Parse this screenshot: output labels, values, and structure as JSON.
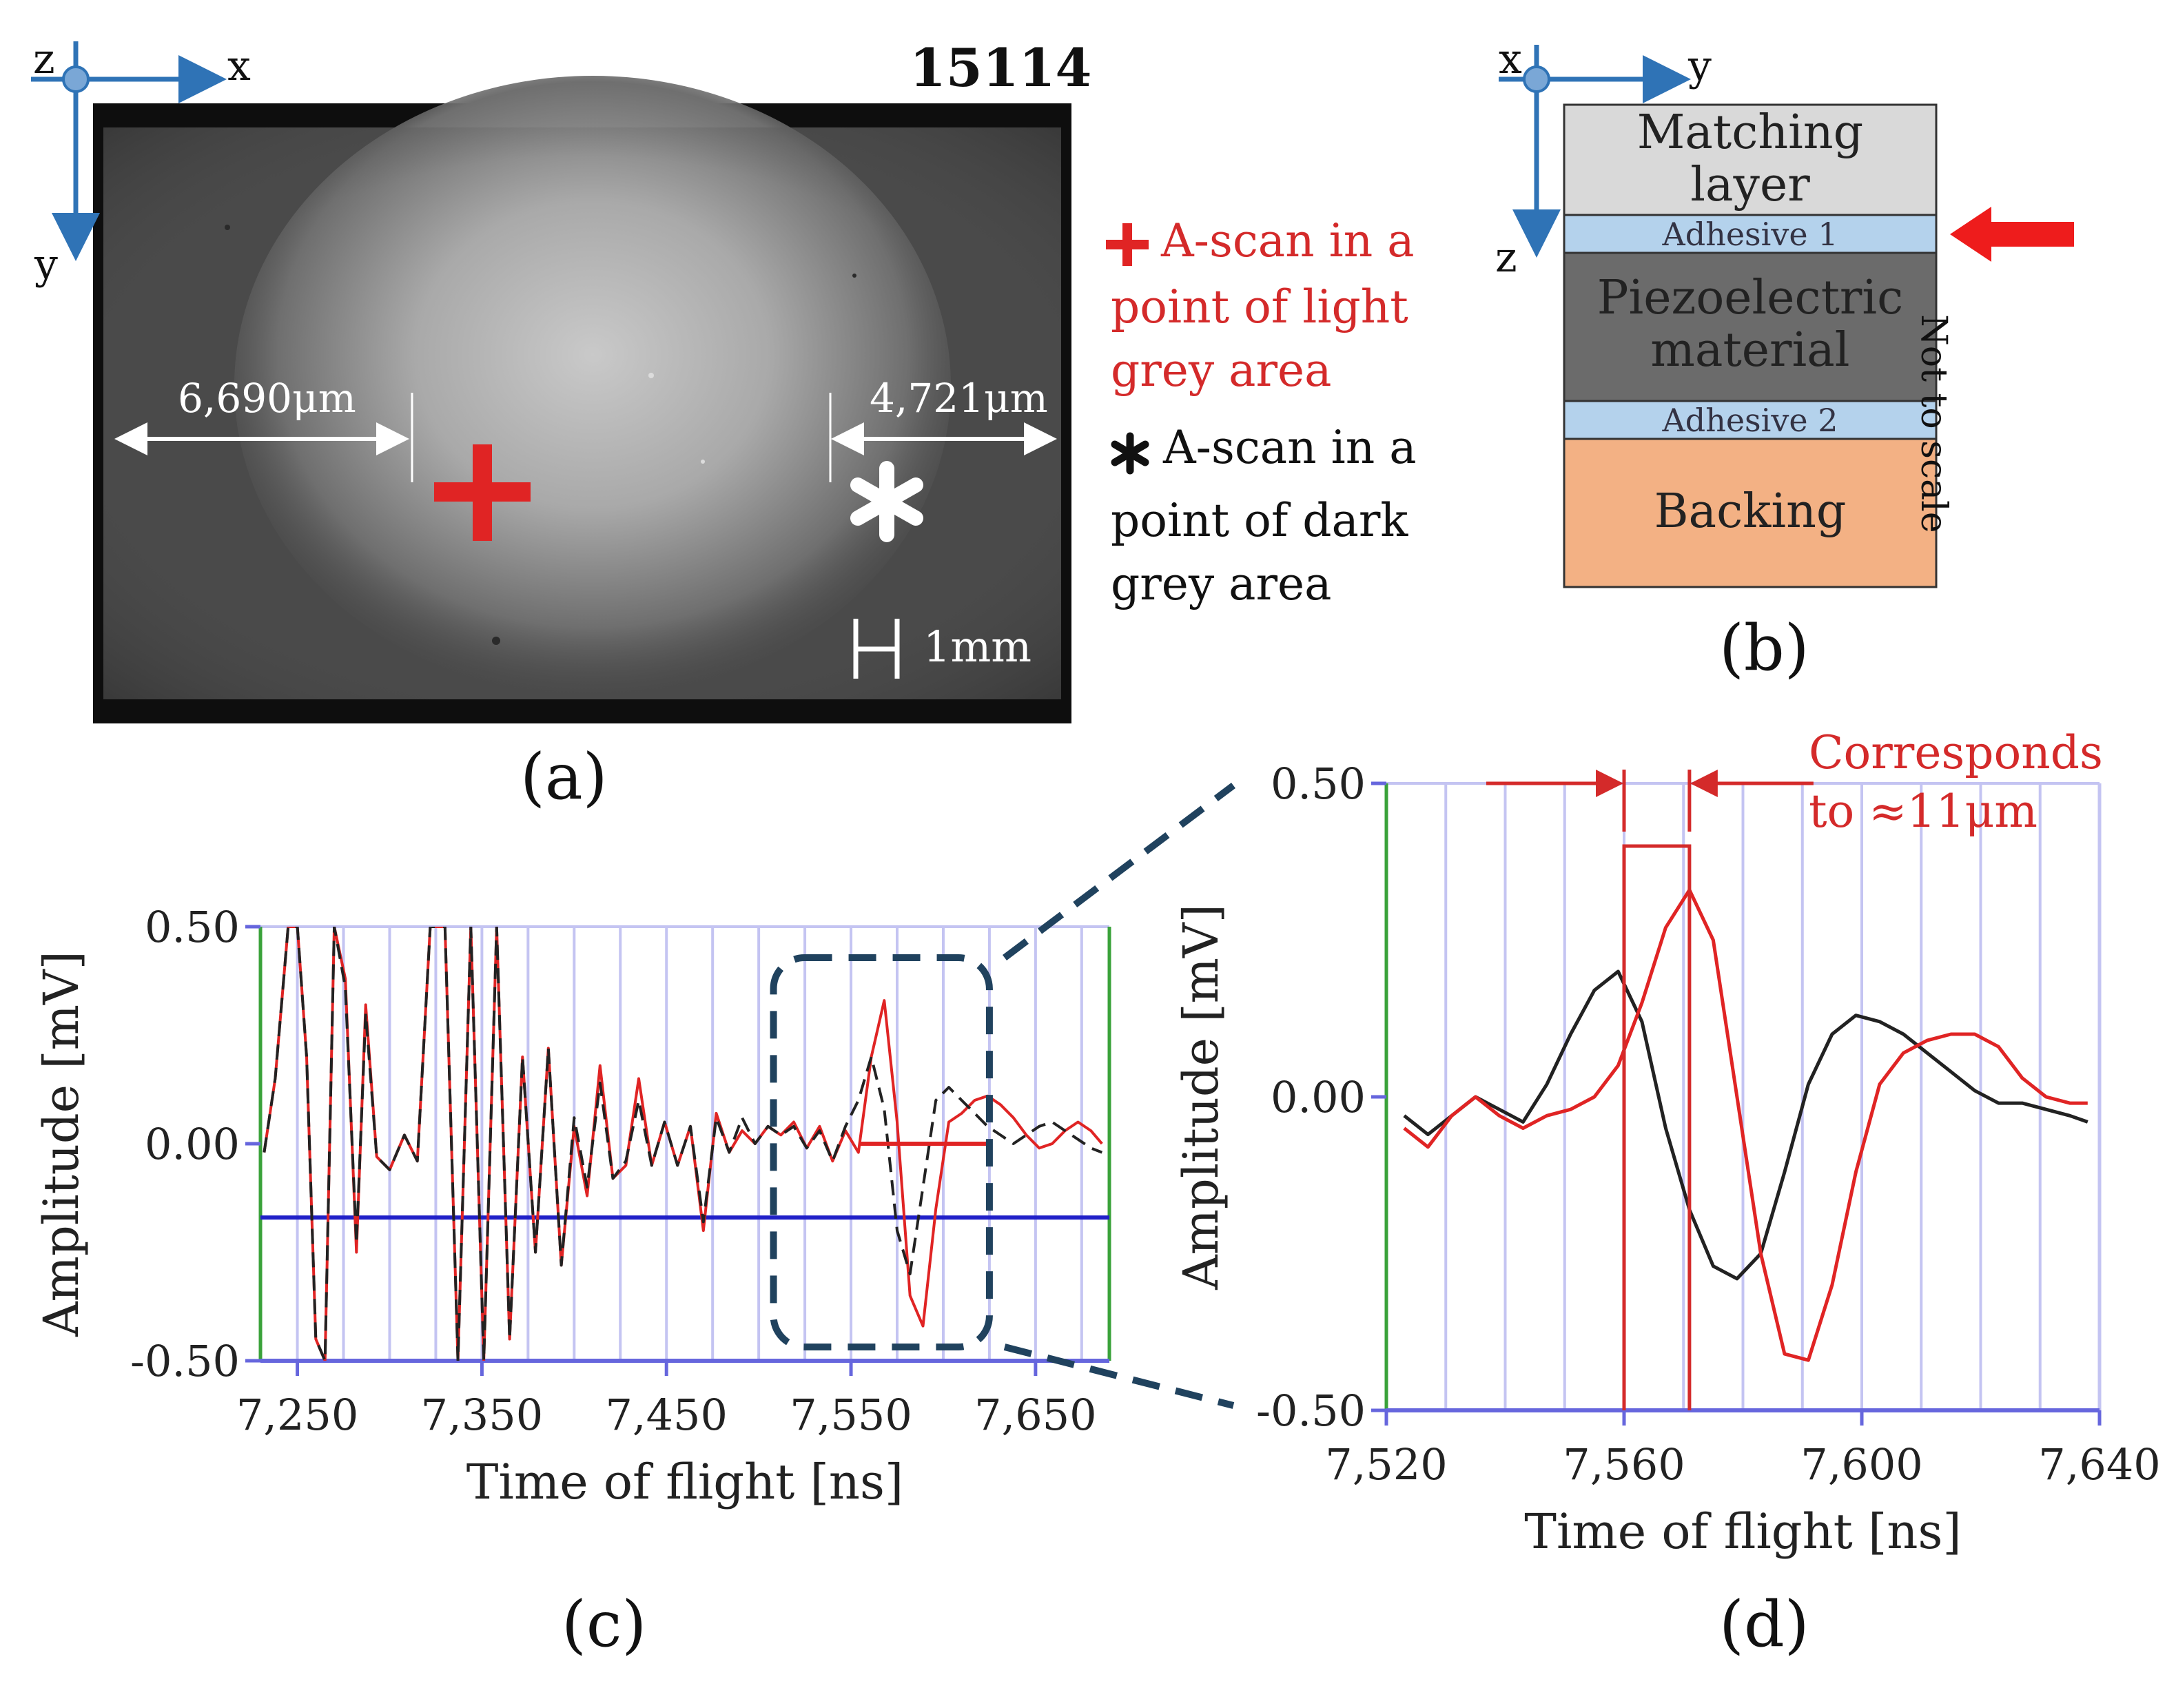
{
  "panel_a": {
    "label": "(a)",
    "sample_id": "15114",
    "axes": {
      "horizontal": "x",
      "vertical": "y",
      "origin": "z"
    },
    "dim_left": "6,690μm",
    "dim_right": "4,721μm",
    "scale_bar": "1mm",
    "legend": [
      {
        "marker": "+",
        "lines": [
          "A-scan in a",
          "point of light",
          "grey area"
        ],
        "color": "#d42a2a"
      },
      {
        "marker": "✱",
        "lines": [
          "A-scan in a",
          "point of dark",
          "grey area"
        ],
        "color": "#111111"
      }
    ]
  },
  "panel_b": {
    "label": "(b)",
    "axes": {
      "horizontal": "y",
      "vertical": "z",
      "origin": "x"
    },
    "layers": {
      "matching": [
        "Matching",
        "layer"
      ],
      "adhesive1": "Adhesive 1",
      "piezo": [
        "Piezoelectric",
        "material"
      ],
      "adhesive2": "Adhesive 2",
      "backing": "Backing"
    },
    "note": "Not to scale",
    "colors": {
      "matching": "#d9d9d9",
      "adhesive": "#b4d2ec",
      "piezo": "#6b6b6b",
      "backing": "#f3b184"
    }
  },
  "panel_c": {
    "label": "(c)"
  },
  "panel_d": {
    "label": "(d)",
    "annotation": [
      "Corresponds",
      "to ≈11μm"
    ]
  },
  "chart_data": [
    {
      "type": "line",
      "panel": "c",
      "xlabel": "Time of flight [ns]",
      "ylabel": "Amplitude [mV]",
      "xlim": [
        7230,
        7690
      ],
      "ylim": [
        -0.5,
        0.5
      ],
      "xticks": [
        {
          "v": 7250,
          "t": "7,250"
        },
        {
          "v": 7350,
          "t": "7,350"
        },
        {
          "v": 7450,
          "t": "7,450"
        },
        {
          "v": 7550,
          "t": "7,550"
        },
        {
          "v": 7650,
          "t": "7,650"
        }
      ],
      "yticks": [
        {
          "v": 0.5,
          "t": "0.50"
        },
        {
          "v": 0.0,
          "t": "0.00"
        },
        {
          "v": -0.5,
          "t": "-0.50"
        }
      ],
      "threshold": -0.17,
      "gate": {
        "x": [
          7555,
          7625
        ],
        "y": 0.0
      },
      "series": [
        {
          "name": "light grey area",
          "color": "#e02424",
          "x": [
            7232,
            7238,
            7245,
            7250,
            7255,
            7260,
            7265,
            7270,
            7276,
            7282,
            7287,
            7293,
            7300,
            7308,
            7315,
            7322,
            7330,
            7337,
            7344,
            7351,
            7358,
            7365,
            7372,
            7379,
            7386,
            7393,
            7400,
            7407,
            7414,
            7421,
            7428,
            7435,
            7442,
            7449,
            7456,
            7463,
            7470,
            7477,
            7484,
            7491,
            7498,
            7505,
            7512,
            7519,
            7526,
            7533,
            7540,
            7547,
            7554,
            7561,
            7568,
            7575,
            7582,
            7589,
            7596,
            7603,
            7610,
            7617,
            7624,
            7631,
            7638,
            7645,
            7652,
            7659,
            7666,
            7673,
            7680,
            7686
          ],
          "y": [
            -0.02,
            0.15,
            0.5,
            0.5,
            0.2,
            -0.45,
            -0.5,
            0.5,
            0.38,
            -0.25,
            0.32,
            -0.03,
            -0.06,
            0.02,
            -0.04,
            0.5,
            0.5,
            -0.5,
            0.5,
            -0.5,
            0.5,
            -0.45,
            0.2,
            -0.25,
            0.22,
            -0.28,
            0.04,
            -0.12,
            0.18,
            -0.08,
            -0.05,
            0.15,
            -0.05,
            0.05,
            -0.05,
            0.04,
            -0.2,
            0.07,
            -0.02,
            0.03,
            0.0,
            0.04,
            0.02,
            0.05,
            -0.01,
            0.04,
            -0.04,
            0.03,
            -0.02,
            0.2,
            0.33,
            0.05,
            -0.35,
            -0.42,
            -0.15,
            0.05,
            0.07,
            0.1,
            0.11,
            0.09,
            0.06,
            0.02,
            -0.01,
            0.0,
            0.03,
            0.05,
            0.03,
            0.0
          ]
        },
        {
          "name": "dark grey area",
          "color": "#222222",
          "dash": true,
          "x": [
            7232,
            7238,
            7245,
            7250,
            7255,
            7260,
            7265,
            7270,
            7276,
            7282,
            7287,
            7293,
            7300,
            7308,
            7315,
            7322,
            7330,
            7337,
            7344,
            7351,
            7358,
            7365,
            7372,
            7379,
            7386,
            7393,
            7400,
            7407,
            7414,
            7421,
            7428,
            7435,
            7442,
            7449,
            7456,
            7463,
            7470,
            7477,
            7484,
            7491,
            7498,
            7505,
            7512,
            7519,
            7526,
            7533,
            7540,
            7547,
            7554,
            7561,
            7568,
            7575,
            7582,
            7589,
            7596,
            7603,
            7610,
            7617,
            7624,
            7631,
            7638,
            7645,
            7652,
            7659,
            7666,
            7673,
            7680,
            7686
          ],
          "y": [
            -0.02,
            0.15,
            0.5,
            0.5,
            0.2,
            -0.45,
            -0.5,
            0.5,
            0.36,
            -0.23,
            0.3,
            -0.03,
            -0.06,
            0.02,
            -0.04,
            0.5,
            0.5,
            -0.5,
            0.5,
            -0.5,
            0.5,
            -0.45,
            0.2,
            -0.25,
            0.22,
            -0.28,
            0.06,
            -0.1,
            0.14,
            -0.08,
            -0.04,
            0.1,
            -0.05,
            0.05,
            -0.05,
            0.04,
            -0.18,
            0.06,
            -0.02,
            0.06,
            0.0,
            0.04,
            0.02,
            0.04,
            -0.01,
            0.03,
            -0.04,
            0.04,
            0.1,
            0.2,
            0.08,
            -0.2,
            -0.3,
            -0.1,
            0.1,
            0.13,
            0.1,
            0.07,
            0.04,
            0.02,
            0.0,
            0.02,
            0.04,
            0.05,
            0.03,
            0.01,
            -0.01,
            -0.02
          ]
        }
      ]
    },
    {
      "type": "line",
      "panel": "d",
      "xlabel": "Time of flight [ns]",
      "ylabel": "Amplitude [mV]",
      "xlim": [
        7520,
        7640
      ],
      "ylim": [
        -0.5,
        0.5
      ],
      "xticks": [
        {
          "v": 7520,
          "t": "7,520"
        },
        {
          "v": 7560,
          "t": "7,560"
        },
        {
          "v": 7600,
          "t": "7,600"
        },
        {
          "v": 7640,
          "t": "7,640"
        }
      ],
      "yticks": [
        {
          "v": 0.5,
          "t": "0.50"
        },
        {
          "v": 0.0,
          "t": "0.00"
        },
        {
          "v": -0.5,
          "t": "-0.50"
        }
      ],
      "window": {
        "x": [
          7560,
          7571
        ],
        "top": 0.4
      },
      "series": [
        {
          "name": "dark grey area",
          "color": "#222222",
          "x": [
            7523,
            7527,
            7531,
            7535,
            7539,
            7543,
            7547,
            7551,
            7555,
            7559,
            7563,
            7567,
            7571,
            7575,
            7579,
            7583,
            7587,
            7591,
            7595,
            7599,
            7603,
            7607,
            7611,
            7615,
            7619,
            7623,
            7627,
            7631,
            7635,
            7638
          ],
          "y": [
            -0.03,
            -0.06,
            -0.03,
            0.0,
            -0.02,
            -0.04,
            0.02,
            0.1,
            0.17,
            0.2,
            0.12,
            -0.05,
            -0.18,
            -0.27,
            -0.29,
            -0.25,
            -0.12,
            0.02,
            0.1,
            0.13,
            0.12,
            0.1,
            0.07,
            0.04,
            0.01,
            -0.01,
            -0.01,
            -0.02,
            -0.03,
            -0.04
          ]
        },
        {
          "name": "light grey area",
          "color": "#e02424",
          "x": [
            7523,
            7527,
            7531,
            7535,
            7539,
            7543,
            7547,
            7551,
            7555,
            7559,
            7563,
            7567,
            7571,
            7575,
            7579,
            7583,
            7587,
            7591,
            7595,
            7599,
            7603,
            7607,
            7611,
            7615,
            7619,
            7623,
            7627,
            7631,
            7635,
            7638
          ],
          "y": [
            -0.05,
            -0.08,
            -0.03,
            0.0,
            -0.03,
            -0.05,
            -0.03,
            -0.02,
            0.0,
            0.05,
            0.15,
            0.27,
            0.33,
            0.25,
            0.0,
            -0.25,
            -0.41,
            -0.42,
            -0.3,
            -0.12,
            0.02,
            0.07,
            0.09,
            0.1,
            0.1,
            0.08,
            0.03,
            0.0,
            -0.01,
            -0.01
          ]
        }
      ]
    }
  ]
}
